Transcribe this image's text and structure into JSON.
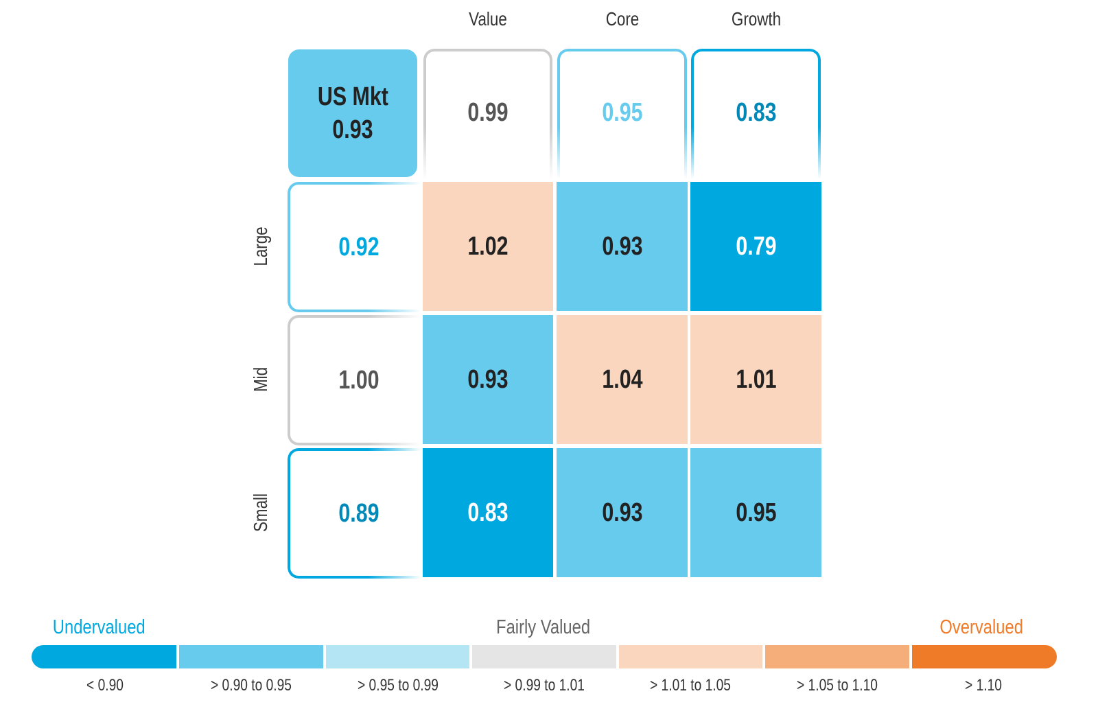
{
  "chart_data": {
    "type": "heatmap",
    "title": "",
    "columns": [
      "Value",
      "Core",
      "Growth"
    ],
    "rows": [
      "Large",
      "Mid",
      "Small"
    ],
    "market": {
      "label": "US Mkt",
      "value": "0.93",
      "color": "#66cbed"
    },
    "column_totals": [
      {
        "value": "0.99",
        "color": "#555555",
        "border": "#cccccc"
      },
      {
        "value": "0.95",
        "color": "#66cbed",
        "border": "#66cbed"
      },
      {
        "value": "0.83",
        "color": "#0088b8",
        "border": "#00a8e0"
      }
    ],
    "row_totals": [
      {
        "value": "0.92",
        "color": "#00a8e0",
        "border": "#66cbed"
      },
      {
        "value": "1.00",
        "color": "#555555",
        "border": "#cccccc"
      },
      {
        "value": "0.89",
        "color": "#0088b8",
        "border": "#00a8e0"
      }
    ],
    "values": [
      [
        {
          "value": "1.02",
          "bg": "#f9d6bd",
          "fg": "#222222"
        },
        {
          "value": "0.93",
          "bg": "#66cbed",
          "fg": "#222222"
        },
        {
          "value": "0.79",
          "bg": "#00a8e0",
          "fg": "#ffffff"
        }
      ],
      [
        {
          "value": "0.93",
          "bg": "#66cbed",
          "fg": "#222222"
        },
        {
          "value": "1.04",
          "bg": "#f9d6bd",
          "fg": "#222222"
        },
        {
          "value": "1.01",
          "bg": "#f9d6bd",
          "fg": "#222222"
        }
      ],
      [
        {
          "value": "0.83",
          "bg": "#00a8e0",
          "fg": "#ffffff"
        },
        {
          "value": "0.93",
          "bg": "#66cbed",
          "fg": "#222222"
        },
        {
          "value": "0.95",
          "bg": "#66cbed",
          "fg": "#222222"
        }
      ]
    ],
    "legend": {
      "undervalued": "Undervalued",
      "fairly": "Fairly Valued",
      "overvalued": "Overvalued",
      "colors": {
        "under": "#00a8e0",
        "fair": "#666666",
        "over": "#ef7a28"
      },
      "bins": [
        {
          "label": "< 0.90",
          "color": "#00a8e0"
        },
        {
          "label": "> 0.90 to 0.95",
          "color": "#66cbed"
        },
        {
          "label": "> 0.95 to 0.99",
          "color": "#b3e5f5"
        },
        {
          "label": "> 0.99 to 1.01",
          "color": "#e5e5e5"
        },
        {
          "label": "> 1.01 to 1.05",
          "color": "#f9d6bd"
        },
        {
          "label": "> 1.05 to 1.10",
          "color": "#f5ae7a"
        },
        {
          "label": "> 1.10",
          "color": "#ef7a28"
        }
      ]
    }
  }
}
